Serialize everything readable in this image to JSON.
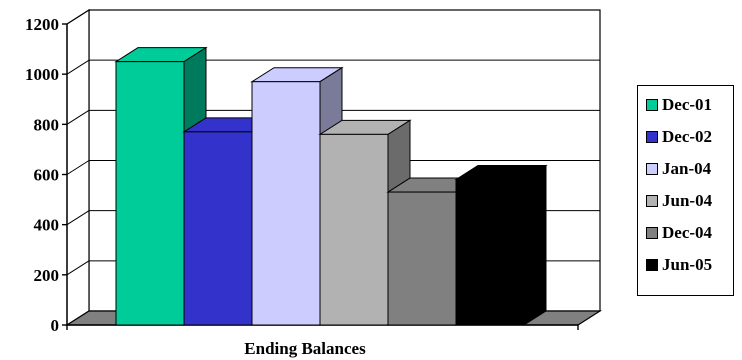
{
  "chart_data": {
    "type": "bar",
    "variant": "3d-clustered",
    "xlabel": "Ending Balances",
    "ylim": [
      0,
      1200
    ],
    "yticks": [
      0,
      200,
      400,
      600,
      800,
      1000,
      1200
    ],
    "grid": true,
    "legend_position": "right",
    "series": [
      {
        "name": "Dec-01",
        "value": 1050,
        "color": "#00cc99"
      },
      {
        "name": "Dec-02",
        "value": 770,
        "color": "#3333cc"
      },
      {
        "name": "Jan-04",
        "value": 970,
        "color": "#ccccff"
      },
      {
        "name": "Jun-04",
        "value": 760,
        "color": "#b2b2b2"
      },
      {
        "name": "Dec-04",
        "value": 530,
        "color": "#808080"
      },
      {
        "name": "Jun-05",
        "value": 580,
        "color": "#000000"
      }
    ]
  }
}
